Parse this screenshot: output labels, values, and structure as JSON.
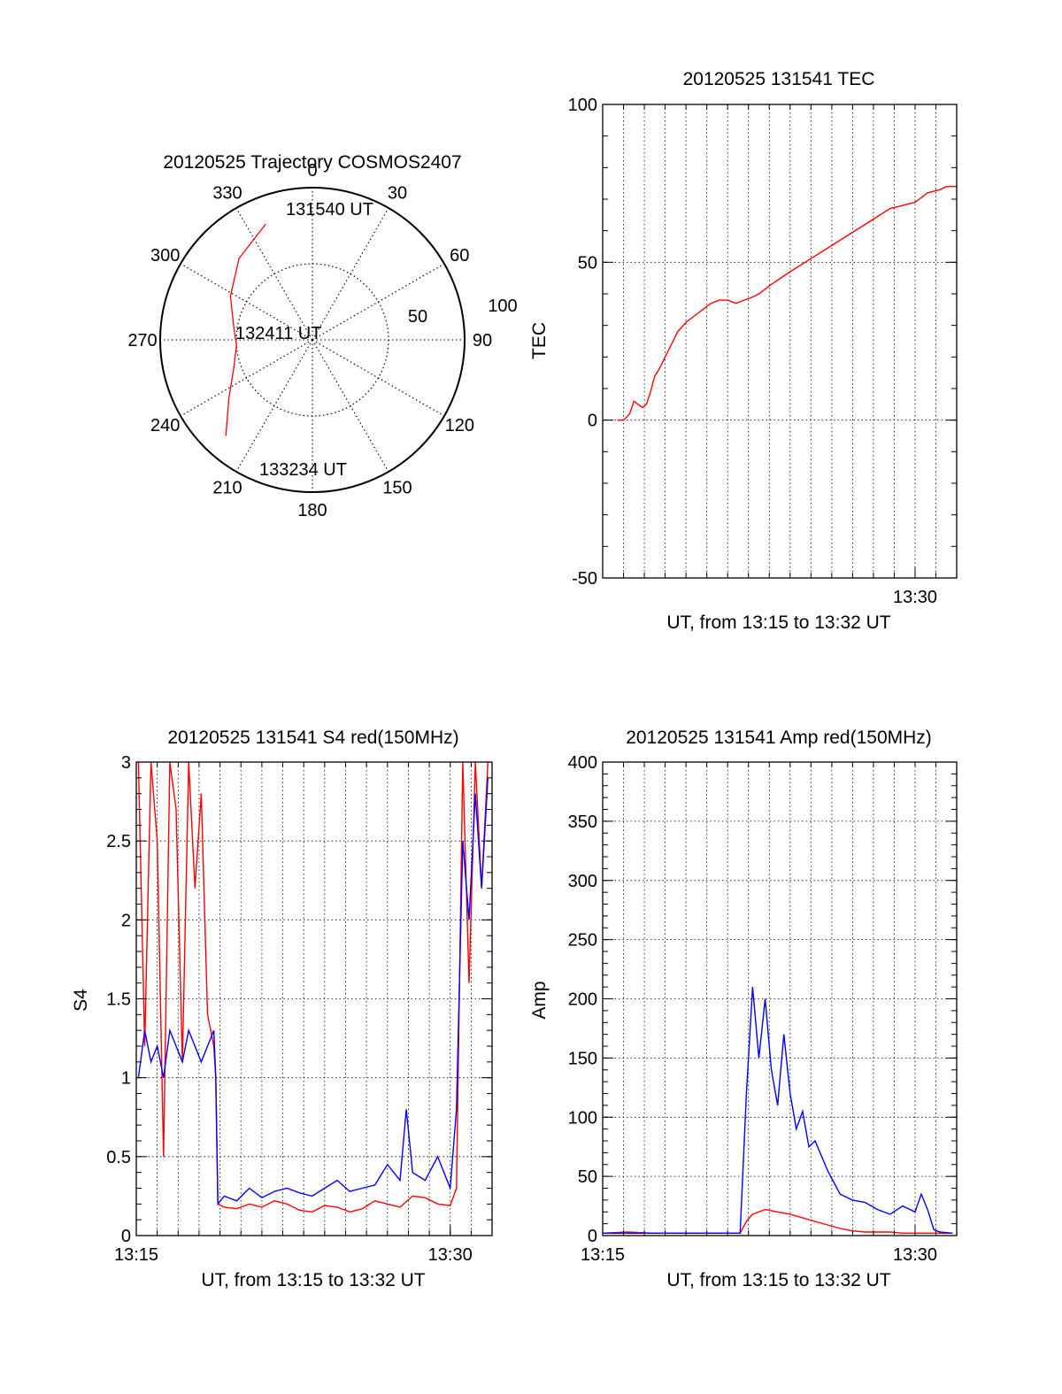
{
  "colors": {
    "red": "#ff0000",
    "blue": "#0000ff",
    "axis": "#000000"
  },
  "chart_data": [
    {
      "type": "polar",
      "id": "trajectory",
      "title": "20120525 Trajectory COSMOS2407",
      "angle_labels": [
        "0",
        "30",
        "60",
        "90",
        "120",
        "150",
        "180",
        "210",
        "240",
        "270",
        "300",
        "330"
      ],
      "angles_deg": [
        0,
        30,
        60,
        90,
        120,
        150,
        180,
        210,
        240,
        270,
        300,
        330
      ],
      "radial_labels": [
        "50",
        "100"
      ],
      "radial_max": 100,
      "track": {
        "color": "red",
        "points": [
          {
            "az": 338,
            "r": 82
          },
          {
            "az": 318,
            "r": 72
          },
          {
            "az": 298,
            "r": 61
          },
          {
            "az": 278,
            "r": 52
          },
          {
            "az": 266,
            "r": 50
          },
          {
            "az": 250,
            "r": 55
          },
          {
            "az": 235,
            "r": 67
          },
          {
            "az": 222,
            "r": 85
          }
        ]
      },
      "annotations": [
        {
          "text": "131540 UT",
          "az": 338,
          "r": 82
        },
        {
          "text": "132411 UT",
          "az": 0,
          "r": 0
        },
        {
          "text": "133234 UT",
          "az": 222,
          "r": 85
        }
      ]
    },
    {
      "type": "line",
      "id": "tec",
      "title": "20120525 131541 TEC",
      "xlabel": "UT, from 13:15 to 13:32 UT",
      "ylabel": "TEC",
      "xlim": [
        13.25,
        13.5333
      ],
      "ylim": [
        -50,
        100
      ],
      "ytick_labels": [
        "-50",
        "0",
        "50",
        "100"
      ],
      "yticks": [
        -50,
        0,
        50,
        100
      ],
      "xtick_labels": [
        "13:30"
      ],
      "xticks": [
        13.5
      ],
      "series": [
        {
          "color": "red",
          "x": [
            13.2617,
            13.2667,
            13.2717,
            13.275,
            13.2783,
            13.2817,
            13.285,
            13.2883,
            13.2917,
            13.295,
            13.3,
            13.305,
            13.31,
            13.3167,
            13.3233,
            13.33,
            13.3367,
            13.3433,
            13.35,
            13.3567,
            13.3633,
            13.37,
            13.375,
            13.385,
            13.4,
            13.42,
            13.44,
            13.46,
            13.48,
            13.5,
            13.51,
            13.52,
            13.525,
            13.5333
          ],
          "y": [
            0,
            0,
            2,
            6,
            5,
            4,
            5,
            9,
            14,
            16,
            20,
            24,
            28,
            31,
            33,
            35,
            37,
            38,
            38,
            37,
            38,
            39,
            40,
            43,
            47,
            52,
            57,
            62,
            67,
            69,
            72,
            73,
            74,
            74
          ]
        }
      ]
    },
    {
      "type": "line",
      "id": "s4",
      "title": "20120525 131541 S4 red(150MHz)",
      "xlabel": "UT, from 13:15 to 13:32 UT",
      "ylabel": "S4",
      "xlim": [
        13.25,
        13.5333
      ],
      "ylim": [
        0,
        3
      ],
      "ytick_labels": [
        "0",
        "0.5",
        "1",
        "1.5",
        "2",
        "2.5",
        "3"
      ],
      "yticks": [
        0,
        0.5,
        1,
        1.5,
        2,
        2.5,
        3
      ],
      "xtick_labels": [
        "13:15",
        "13:30"
      ],
      "xticks": [
        13.25,
        13.5
      ],
      "series": [
        {
          "color": "red",
          "x": [
            13.2517,
            13.2567,
            13.2617,
            13.2667,
            13.2717,
            13.2767,
            13.2817,
            13.2867,
            13.2917,
            13.2967,
            13.3017,
            13.3067,
            13.3117,
            13.3133,
            13.315,
            13.32,
            13.33,
            13.34,
            13.35,
            13.36,
            13.37,
            13.38,
            13.39,
            13.4,
            13.41,
            13.42,
            13.43,
            13.44,
            13.45,
            13.46,
            13.47,
            13.48,
            13.49,
            13.5,
            13.505,
            13.51,
            13.515,
            13.52,
            13.525,
            13.53
          ],
          "y": [
            3,
            1.2,
            3,
            2.5,
            0.5,
            3,
            2.7,
            1.1,
            3,
            2.2,
            2.8,
            1.4,
            1.2,
            1.0,
            0.2,
            0.18,
            0.17,
            0.2,
            0.18,
            0.22,
            0.2,
            0.16,
            0.15,
            0.19,
            0.18,
            0.15,
            0.17,
            0.22,
            0.2,
            0.18,
            0.25,
            0.24,
            0.2,
            0.19,
            0.3,
            3,
            1.6,
            3,
            2.2,
            3
          ]
        },
        {
          "color": "blue",
          "x": [
            13.2517,
            13.2567,
            13.2617,
            13.2667,
            13.2717,
            13.2767,
            13.2817,
            13.2867,
            13.2917,
            13.2967,
            13.3017,
            13.3067,
            13.3117,
            13.3133,
            13.315,
            13.32,
            13.33,
            13.34,
            13.35,
            13.36,
            13.37,
            13.38,
            13.39,
            13.4,
            13.41,
            13.42,
            13.43,
            13.44,
            13.45,
            13.46,
            13.465,
            13.47,
            13.48,
            13.49,
            13.5,
            13.505,
            13.51,
            13.515,
            13.52,
            13.525,
            13.53
          ],
          "y": [
            1.0,
            1.3,
            1.1,
            1.2,
            1.0,
            1.3,
            1.2,
            1.1,
            1.3,
            1.2,
            1.1,
            1.2,
            1.3,
            1.0,
            0.2,
            0.25,
            0.22,
            0.3,
            0.24,
            0.28,
            0.3,
            0.27,
            0.25,
            0.3,
            0.35,
            0.28,
            0.3,
            0.32,
            0.45,
            0.35,
            0.8,
            0.4,
            0.35,
            0.5,
            0.3,
            0.8,
            2.5,
            2.0,
            2.8,
            2.2,
            2.9
          ]
        }
      ]
    },
    {
      "type": "line",
      "id": "amp",
      "title": "20120525 131541 Amp red(150MHz)",
      "xlabel": "UT, from 13:15 to 13:32 UT",
      "ylabel": "Amp",
      "xlim": [
        13.25,
        13.5333
      ],
      "ylim": [
        0,
        400
      ],
      "ytick_labels": [
        "0",
        "50",
        "100",
        "150",
        "200",
        "250",
        "300",
        "350",
        "400"
      ],
      "yticks": [
        0,
        50,
        100,
        150,
        200,
        250,
        300,
        350,
        400
      ],
      "xtick_labels": [
        "13:15",
        "13:30"
      ],
      "xticks": [
        13.25,
        13.5
      ],
      "series": [
        {
          "color": "red",
          "x": [
            13.25,
            13.27,
            13.29,
            13.31,
            13.33,
            13.35,
            13.36,
            13.365,
            13.37,
            13.38,
            13.39,
            13.4,
            13.41,
            13.42,
            13.43,
            13.44,
            13.45,
            13.46,
            13.47,
            13.48,
            13.49,
            13.5,
            13.51,
            13.52,
            13.53
          ],
          "y": [
            2,
            3,
            2,
            2,
            2,
            2,
            2,
            12,
            18,
            22,
            20,
            18,
            15,
            12,
            9,
            6,
            4,
            3,
            3,
            3,
            2,
            2,
            2,
            2,
            2
          ]
        },
        {
          "color": "blue",
          "x": [
            13.25,
            13.27,
            13.29,
            13.31,
            13.33,
            13.35,
            13.36,
            13.365,
            13.37,
            13.375,
            13.38,
            13.385,
            13.39,
            13.395,
            13.4,
            13.405,
            13.41,
            13.415,
            13.42,
            13.43,
            13.44,
            13.45,
            13.46,
            13.47,
            13.48,
            13.49,
            13.5,
            13.505,
            13.51,
            13.515,
            13.52,
            13.53
          ],
          "y": [
            2,
            2,
            2,
            2,
            2,
            2,
            2,
            120,
            210,
            150,
            200,
            140,
            110,
            170,
            120,
            90,
            105,
            75,
            80,
            55,
            35,
            30,
            28,
            22,
            18,
            25,
            20,
            35,
            22,
            5,
            3,
            2
          ]
        }
      ]
    }
  ]
}
